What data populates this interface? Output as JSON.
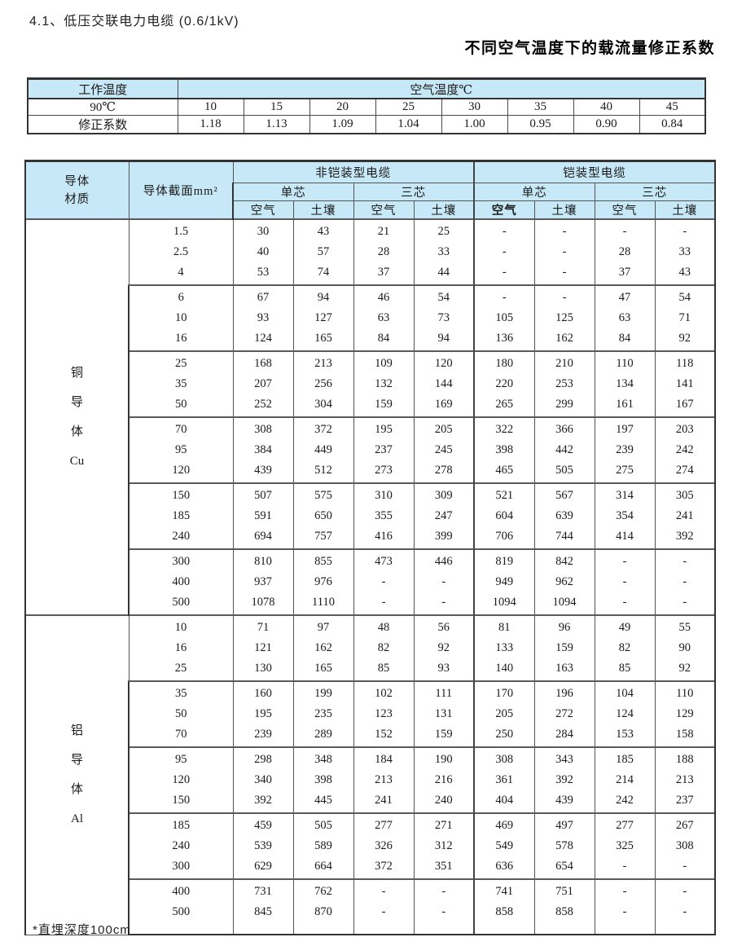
{
  "page": {
    "title": "4.1、低压交联电力电缆 (0.6/1kV)",
    "subtitle": "不同空气温度下的载流量修正系数",
    "footnote": "*直埋深度100cm"
  },
  "correction_table": {
    "work_temp_header": "工作温度",
    "air_temp_header": "空气温度℃",
    "temp_row_label": "90℃",
    "temps": [
      "10",
      "15",
      "20",
      "25",
      "30",
      "35",
      "40",
      "45"
    ],
    "factor_row_label": "修正系数",
    "factors": [
      "1.18",
      "1.13",
      "1.09",
      "1.04",
      "1.00",
      "0.95",
      "0.90",
      "0.84"
    ]
  },
  "main_table": {
    "headers": {
      "material_line1": "导体",
      "material_line2": "材质",
      "cross_section": "导体截面mm²",
      "unarmored": "非铠装型电缆",
      "armored": "铠装型电缆",
      "single_core": "单芯",
      "three_core": "三芯",
      "air": "空气",
      "soil": "土壤"
    },
    "sections": [
      {
        "material_lines": [
          "铜",
          "导",
          "体",
          "Cu"
        ],
        "groups": [
          {
            "sizes": [
              "1.5",
              "2.5",
              "4"
            ],
            "cols": [
              [
                "30",
                "40",
                "53"
              ],
              [
                "43",
                "57",
                "74"
              ],
              [
                "21",
                "28",
                "37"
              ],
              [
                "25",
                "33",
                "44"
              ],
              [
                "-",
                "-",
                "-"
              ],
              [
                "-",
                "-",
                "-"
              ],
              [
                "-",
                "28",
                "37"
              ],
              [
                "-",
                "33",
                "43"
              ]
            ]
          },
          {
            "sizes": [
              "6",
              "10",
              "16"
            ],
            "cols": [
              [
                "67",
                "93",
                "124"
              ],
              [
                "94",
                "127",
                "165"
              ],
              [
                "46",
                "63",
                "84"
              ],
              [
                "54",
                "73",
                "94"
              ],
              [
                "-",
                "105",
                "136"
              ],
              [
                "-",
                "125",
                "162"
              ],
              [
                "47",
                "63",
                "84"
              ],
              [
                "54",
                "71",
                "92"
              ]
            ]
          },
          {
            "sizes": [
              "25",
              "35",
              "50"
            ],
            "cols": [
              [
                "168",
                "207",
                "252"
              ],
              [
                "213",
                "256",
                "304"
              ],
              [
                "109",
                "132",
                "159"
              ],
              [
                "120",
                "144",
                "169"
              ],
              [
                "180",
                "220",
                "265"
              ],
              [
                "210",
                "253",
                "299"
              ],
              [
                "110",
                "134",
                "161"
              ],
              [
                "118",
                "141",
                "167"
              ]
            ]
          },
          {
            "sizes": [
              "70",
              "95",
              "120"
            ],
            "cols": [
              [
                "308",
                "384",
                "439"
              ],
              [
                "372",
                "449",
                "512"
              ],
              [
                "195",
                "237",
                "273"
              ],
              [
                "205",
                "245",
                "278"
              ],
              [
                "322",
                "398",
                "465"
              ],
              [
                "366",
                "442",
                "505"
              ],
              [
                "197",
                "239",
                "275"
              ],
              [
                "203",
                "242",
                "274"
              ]
            ]
          },
          {
            "sizes": [
              "150",
              "185",
              "240"
            ],
            "cols": [
              [
                "507",
                "591",
                "694"
              ],
              [
                "575",
                "650",
                "757"
              ],
              [
                "310",
                "355",
                "416"
              ],
              [
                "309",
                "247",
                "399"
              ],
              [
                "521",
                "604",
                "706"
              ],
              [
                "567",
                "639",
                "744"
              ],
              [
                "314",
                "354",
                "414"
              ],
              [
                "305",
                "241",
                "392"
              ]
            ]
          },
          {
            "sizes": [
              "300",
              "400",
              "500"
            ],
            "cols": [
              [
                "810",
                "937",
                "1078"
              ],
              [
                "855",
                "976",
                "1110"
              ],
              [
                "473",
                "-",
                "-"
              ],
              [
                "446",
                "-",
                "-"
              ],
              [
                "819",
                "949",
                "1094"
              ],
              [
                "842",
                "962",
                "1094"
              ],
              [
                "-",
                "-",
                "-"
              ],
              [
                "-",
                "-",
                "-"
              ]
            ]
          }
        ]
      },
      {
        "material_lines": [
          "铝",
          "导",
          "体",
          "Al"
        ],
        "groups": [
          {
            "sizes": [
              "10",
              "16",
              "25"
            ],
            "cols": [
              [
                "71",
                "121",
                "130"
              ],
              [
                "97",
                "162",
                "165"
              ],
              [
                "48",
                "82",
                "85"
              ],
              [
                "56",
                "92",
                "93"
              ],
              [
                "81",
                "133",
                "140"
              ],
              [
                "96",
                "159",
                "163"
              ],
              [
                "49",
                "82",
                "85"
              ],
              [
                "55",
                "90",
                "92"
              ]
            ]
          },
          {
            "sizes": [
              "35",
              "50",
              "70"
            ],
            "cols": [
              [
                "160",
                "195",
                "239"
              ],
              [
                "199",
                "235",
                "289"
              ],
              [
                "102",
                "123",
                "152"
              ],
              [
                "111",
                "131",
                "159"
              ],
              [
                "170",
                "205",
                "250"
              ],
              [
                "196",
                "272",
                "284"
              ],
              [
                "104",
                "124",
                "153"
              ],
              [
                "110",
                "129",
                "158"
              ]
            ]
          },
          {
            "sizes": [
              "95",
              "120",
              "150"
            ],
            "cols": [
              [
                "298",
                "340",
                "392"
              ],
              [
                "348",
                "398",
                "445"
              ],
              [
                "184",
                "213",
                "241"
              ],
              [
                "190",
                "216",
                "240"
              ],
              [
                "308",
                "361",
                "404"
              ],
              [
                "343",
                "392",
                "439"
              ],
              [
                "185",
                "214",
                "242"
              ],
              [
                "188",
                "213",
                "237"
              ]
            ]
          },
          {
            "sizes": [
              "185",
              "240",
              "300"
            ],
            "cols": [
              [
                "459",
                "539",
                "629"
              ],
              [
                "505",
                "589",
                "664"
              ],
              [
                "277",
                "326",
                "372"
              ],
              [
                "271",
                "312",
                "351"
              ],
              [
                "469",
                "549",
                "636"
              ],
              [
                "497",
                "578",
                "654"
              ],
              [
                "277",
                "325",
                "-"
              ],
              [
                "267",
                "308",
                "-"
              ]
            ]
          },
          {
            "sizes": [
              "400",
              "500"
            ],
            "cols": [
              [
                "731",
                "845"
              ],
              [
                "762",
                "870"
              ],
              [
                "-",
                "-"
              ],
              [
                "-",
                "-"
              ],
              [
                "741",
                "858"
              ],
              [
                "751",
                "858"
              ],
              [
                "-",
                "-"
              ],
              [
                "-",
                "-"
              ]
            ]
          }
        ]
      }
    ]
  },
  "colors": {
    "header_blue": "#c7e8f7",
    "border_dark": "#333333"
  }
}
